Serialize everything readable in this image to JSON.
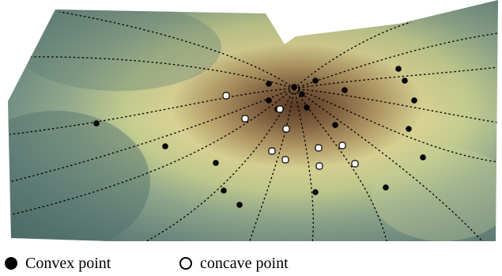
{
  "legend": {
    "convex_label": "Convex point",
    "concave_label": "concave point"
  },
  "colors": {
    "surface_dark_teal": "#4f6f6a",
    "surface_mid_teal": "#6f8d84",
    "surface_light": "#c4cd90",
    "surface_yellow": "#d8d294",
    "surface_brown": "#5a3a28",
    "curve_line": "#000000",
    "convex_marker": "#000000",
    "concave_marker": "#ffffff"
  },
  "markers": {
    "convex_count": 21,
    "concave_count": 10
  }
}
